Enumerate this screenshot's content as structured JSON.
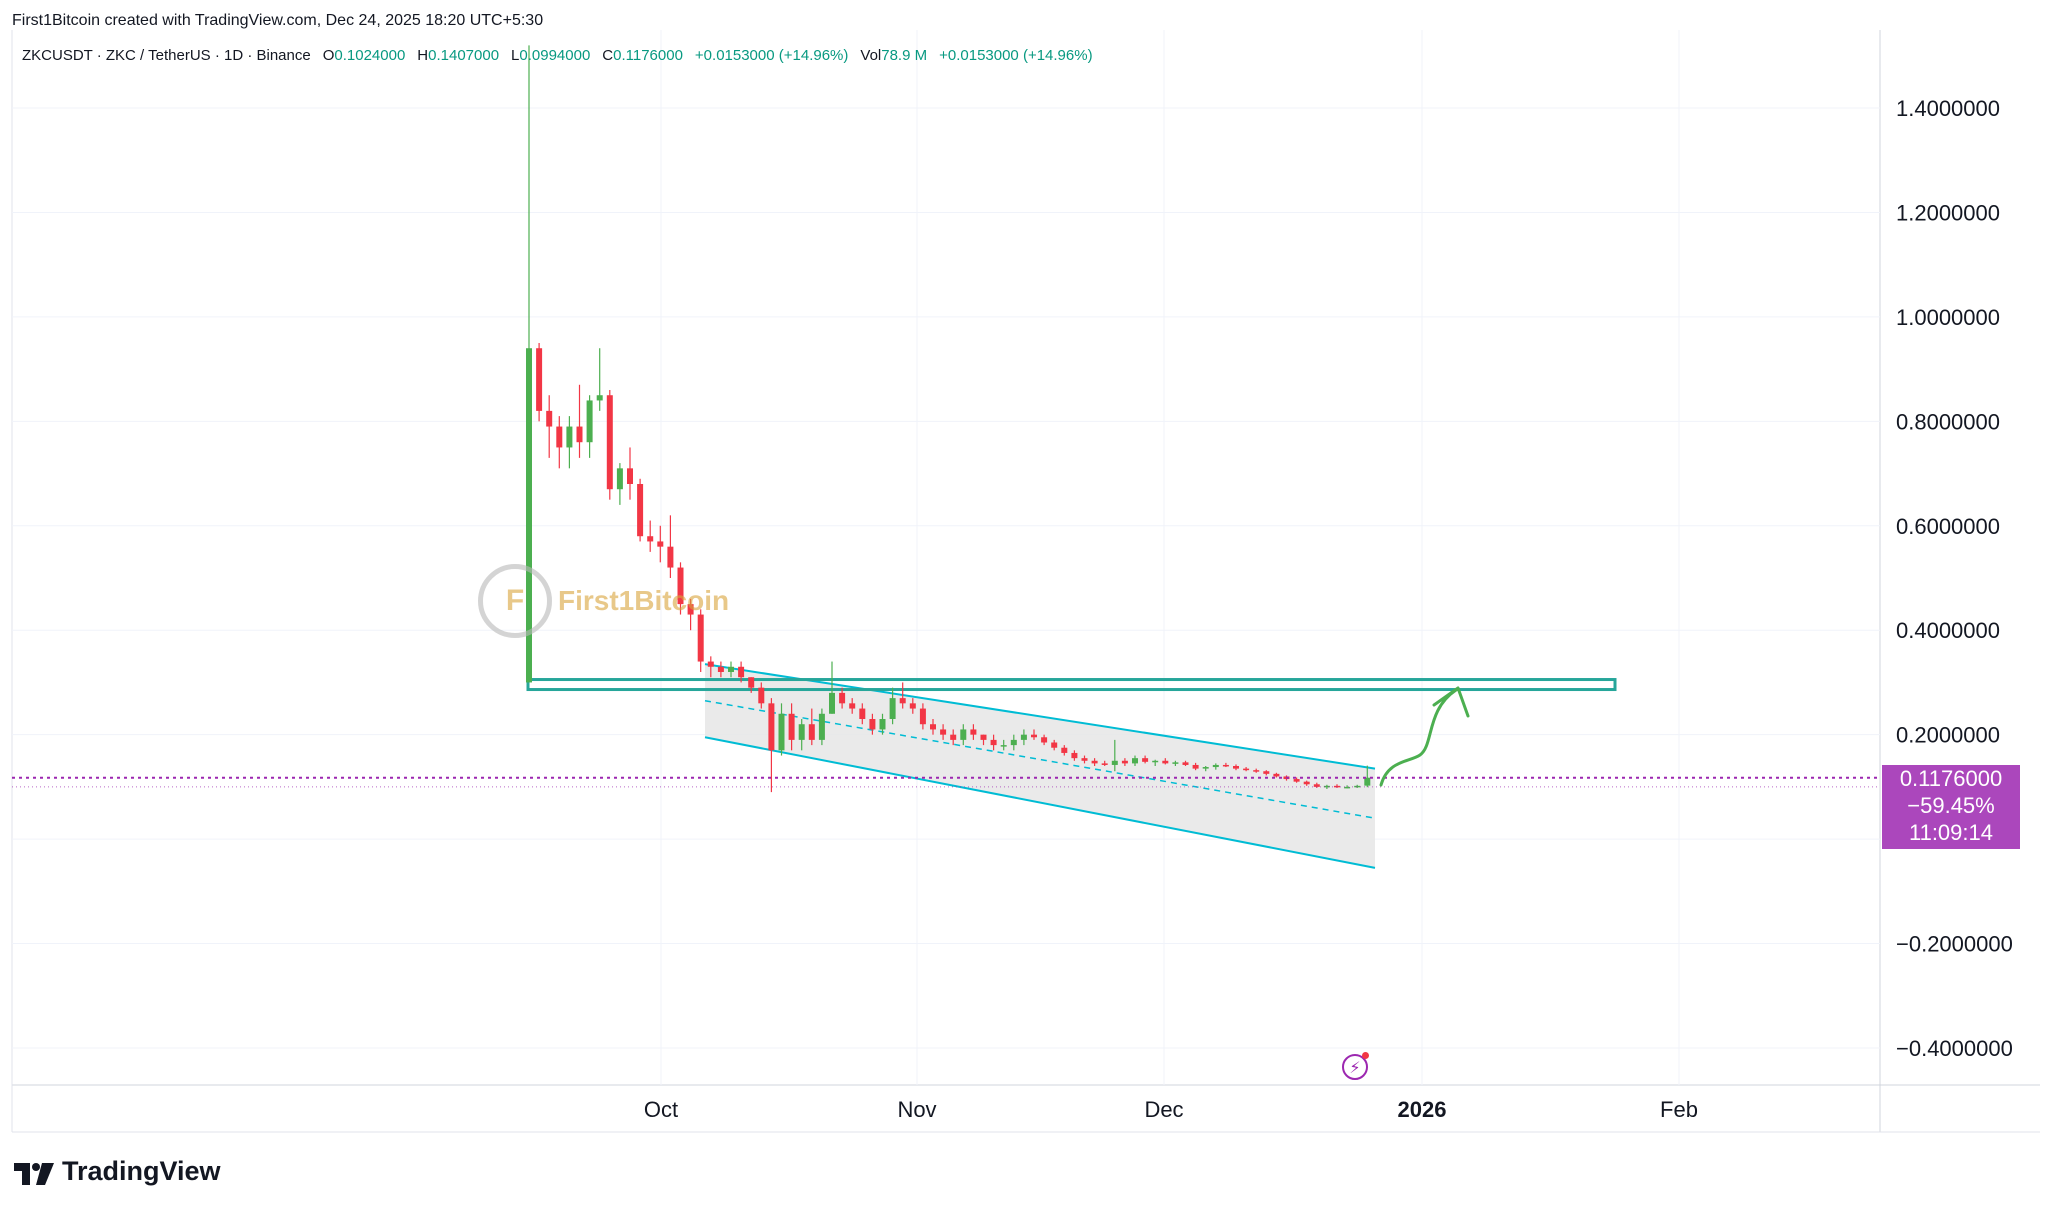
{
  "header": {
    "credit": "First1Bitcoin created with TradingView.com, Dec 24, 2025 18:20 UTC+5:30"
  },
  "legend": {
    "symbol": "ZKCUSDT · ZKC / TetherUS · 1D · Binance",
    "open_key": "O",
    "open": "0.1024000",
    "high_key": "H",
    "high": "0.1407000",
    "low_key": "L",
    "low": "0.0994000",
    "close_key": "C",
    "close": "0.1176000",
    "change": "+0.0153000 (+14.96%)",
    "vol_key": "Vol",
    "vol": "78.9 M",
    "vol_change": "+0.0153000 (+14.96%)"
  },
  "watermark": {
    "logo": "F",
    "text": "First1Bitcoin"
  },
  "price_tag": {
    "price": "0.1176000",
    "change": "−59.45%",
    "countdown": "11:09:14"
  },
  "brand": {
    "name": "TradingView"
  },
  "colors": {
    "up": "#4caf50",
    "down": "#f23645",
    "channel": "#00bcd4",
    "level": "#26a69a",
    "price_line": "#9c27b0",
    "arrow": "#4caf50"
  },
  "chart_data": {
    "type": "candlestick",
    "title": "ZKCUSDT · ZKC / TetherUS · 1D · Binance",
    "y_ticks": [
      1.4,
      1.2,
      1.0,
      0.8,
      0.6,
      0.4,
      0.2,
      -0.2,
      -0.4
    ],
    "y_tick_labels": [
      "1.4000000",
      "1.2000000",
      "1.0000000",
      "0.8000000",
      "0.6000000",
      "0.4000000",
      "0.2000000",
      "−0.2000000",
      "−0.4000000"
    ],
    "x_ticks": [
      "Oct",
      "Nov",
      "Dec",
      "2026",
      "Feb"
    ],
    "ylim": [
      -0.47,
      1.52
    ],
    "last_price": 0.1176,
    "horizontal_level": 0.296,
    "candles": [
      [
        0.3,
        1.52,
        0.3,
        0.94
      ],
      [
        0.94,
        0.95,
        0.8,
        0.82
      ],
      [
        0.82,
        0.85,
        0.73,
        0.79
      ],
      [
        0.79,
        0.81,
        0.71,
        0.75
      ],
      [
        0.75,
        0.81,
        0.71,
        0.79
      ],
      [
        0.79,
        0.87,
        0.73,
        0.76
      ],
      [
        0.76,
        0.85,
        0.73,
        0.84
      ],
      [
        0.84,
        0.94,
        0.82,
        0.85
      ],
      [
        0.85,
        0.86,
        0.65,
        0.67
      ],
      [
        0.67,
        0.72,
        0.64,
        0.71
      ],
      [
        0.71,
        0.75,
        0.65,
        0.68
      ],
      [
        0.68,
        0.69,
        0.57,
        0.58
      ],
      [
        0.58,
        0.61,
        0.55,
        0.57
      ],
      [
        0.57,
        0.6,
        0.53,
        0.56
      ],
      [
        0.56,
        0.62,
        0.5,
        0.52
      ],
      [
        0.52,
        0.53,
        0.43,
        0.45
      ],
      [
        0.45,
        0.46,
        0.4,
        0.43
      ],
      [
        0.43,
        0.44,
        0.32,
        0.34
      ],
      [
        0.34,
        0.35,
        0.31,
        0.33
      ],
      [
        0.33,
        0.34,
        0.31,
        0.32
      ],
      [
        0.32,
        0.34,
        0.31,
        0.33
      ],
      [
        0.33,
        0.34,
        0.3,
        0.31
      ],
      [
        0.31,
        0.31,
        0.28,
        0.29
      ],
      [
        0.29,
        0.3,
        0.25,
        0.26
      ],
      [
        0.26,
        0.27,
        0.09,
        0.17
      ],
      [
        0.17,
        0.26,
        0.16,
        0.24
      ],
      [
        0.24,
        0.26,
        0.17,
        0.19
      ],
      [
        0.19,
        0.23,
        0.17,
        0.22
      ],
      [
        0.22,
        0.25,
        0.18,
        0.19
      ],
      [
        0.19,
        0.25,
        0.18,
        0.24
      ],
      [
        0.24,
        0.34,
        0.24,
        0.28
      ],
      [
        0.28,
        0.29,
        0.25,
        0.26
      ],
      [
        0.26,
        0.27,
        0.24,
        0.25
      ],
      [
        0.25,
        0.26,
        0.22,
        0.23
      ],
      [
        0.23,
        0.24,
        0.2,
        0.21
      ],
      [
        0.21,
        0.24,
        0.2,
        0.23
      ],
      [
        0.23,
        0.29,
        0.22,
        0.27
      ],
      [
        0.27,
        0.3,
        0.25,
        0.26
      ],
      [
        0.26,
        0.27,
        0.24,
        0.25
      ],
      [
        0.25,
        0.26,
        0.21,
        0.22
      ],
      [
        0.22,
        0.23,
        0.2,
        0.21
      ],
      [
        0.21,
        0.22,
        0.19,
        0.2
      ],
      [
        0.2,
        0.21,
        0.18,
        0.19
      ],
      [
        0.19,
        0.22,
        0.18,
        0.21
      ],
      [
        0.21,
        0.22,
        0.19,
        0.2
      ],
      [
        0.2,
        0.2,
        0.18,
        0.19
      ],
      [
        0.19,
        0.2,
        0.17,
        0.18
      ],
      [
        0.18,
        0.19,
        0.17,
        0.18
      ],
      [
        0.18,
        0.2,
        0.17,
        0.19
      ],
      [
        0.19,
        0.21,
        0.18,
        0.2
      ],
      [
        0.2,
        0.21,
        0.19,
        0.195
      ],
      [
        0.195,
        0.2,
        0.18,
        0.185
      ],
      [
        0.185,
        0.19,
        0.17,
        0.175
      ],
      [
        0.175,
        0.18,
        0.16,
        0.165
      ],
      [
        0.165,
        0.17,
        0.15,
        0.155
      ],
      [
        0.155,
        0.16,
        0.145,
        0.15
      ],
      [
        0.15,
        0.155,
        0.14,
        0.145
      ],
      [
        0.145,
        0.15,
        0.14,
        0.142
      ],
      [
        0.142,
        0.19,
        0.13,
        0.15
      ],
      [
        0.15,
        0.155,
        0.14,
        0.145
      ],
      [
        0.145,
        0.16,
        0.14,
        0.155
      ],
      [
        0.155,
        0.16,
        0.145,
        0.148
      ],
      [
        0.148,
        0.152,
        0.14,
        0.15
      ],
      [
        0.15,
        0.155,
        0.143,
        0.145
      ],
      [
        0.145,
        0.15,
        0.14,
        0.147
      ],
      [
        0.147,
        0.15,
        0.14,
        0.142
      ],
      [
        0.142,
        0.146,
        0.132,
        0.135
      ],
      [
        0.135,
        0.14,
        0.13,
        0.138
      ],
      [
        0.138,
        0.145,
        0.133,
        0.142
      ],
      [
        0.142,
        0.146,
        0.138,
        0.14
      ],
      [
        0.14,
        0.143,
        0.132,
        0.135
      ],
      [
        0.135,
        0.138,
        0.13,
        0.132
      ],
      [
        0.132,
        0.135,
        0.127,
        0.13
      ],
      [
        0.13,
        0.132,
        0.122,
        0.125
      ],
      [
        0.125,
        0.127,
        0.118,
        0.12
      ],
      [
        0.12,
        0.122,
        0.112,
        0.115
      ],
      [
        0.115,
        0.118,
        0.108,
        0.11
      ],
      [
        0.11,
        0.112,
        0.102,
        0.105
      ],
      [
        0.105,
        0.108,
        0.098,
        0.1
      ],
      [
        0.1,
        0.104,
        0.096,
        0.102
      ],
      [
        0.102,
        0.105,
        0.098,
        0.1
      ],
      [
        0.1,
        0.103,
        0.097,
        0.1
      ],
      [
        0.1,
        0.104,
        0.098,
        0.102
      ],
      [
        0.1024,
        0.1407,
        0.0994,
        0.1176
      ]
    ]
  }
}
